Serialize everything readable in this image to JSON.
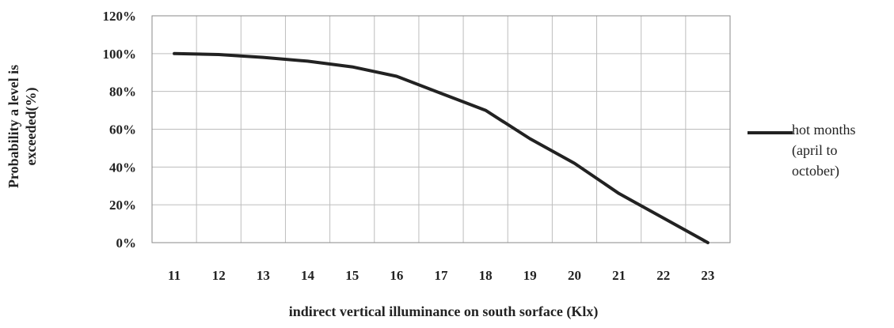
{
  "chart_data": {
    "type": "line",
    "title": "",
    "xlabel": "indirect vertical illuminance on south sorface (Klx)",
    "ylabel_lines": [
      "Probability a level is",
      "exceeded(%)"
    ],
    "categories": [
      "11",
      "12",
      "13",
      "14",
      "15",
      "16",
      "17",
      "18",
      "19",
      "20",
      "21",
      "22",
      "23"
    ],
    "yticks": [
      "0%",
      "20%",
      "40%",
      "60%",
      "80%",
      "100%",
      "120%"
    ],
    "ylim": [
      0,
      120
    ],
    "grid": true,
    "legend_position": "right",
    "series": [
      {
        "name_lines": [
          "hot months",
          "(april to",
          "october)"
        ],
        "color": "#222222",
        "values": [
          100,
          99.5,
          98,
          96,
          93,
          88,
          79,
          70,
          55,
          42,
          26,
          13,
          0
        ]
      }
    ]
  }
}
